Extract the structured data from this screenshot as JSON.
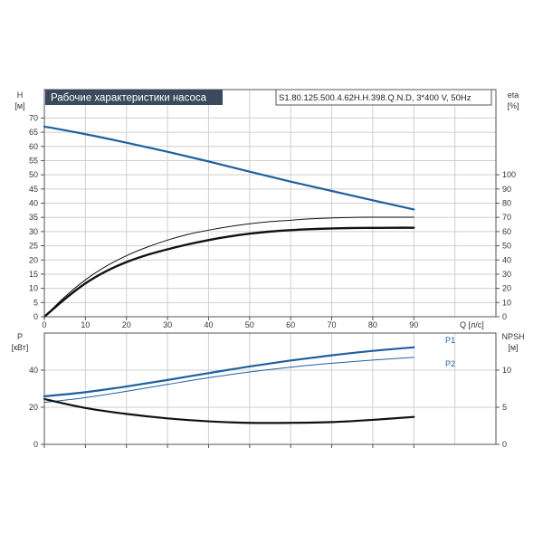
{
  "chart_data": [
    {
      "type": "line",
      "title": "Рабочие характеристики насоса",
      "model_label": "S1.80.125.500.4.62H.H.398.Q.N.D, 3*400 V, 50Hz",
      "xlabel": "Q [л/с]",
      "xlim": [
        0,
        110
      ],
      "x_ticks": [
        0,
        10,
        20,
        30,
        40,
        50,
        60,
        70,
        80,
        90
      ],
      "y_left": {
        "label_top": "H",
        "label_unit": "[м]",
        "lim": [
          0,
          80
        ],
        "ticks": [
          0,
          5,
          10,
          15,
          20,
          25,
          30,
          35,
          40,
          45,
          50,
          55,
          60,
          65,
          70
        ]
      },
      "y_right": {
        "label_top": "eta",
        "label_unit": "[%]",
        "lim": [
          0,
          160
        ],
        "ticks": [
          0,
          10,
          20,
          30,
          40,
          50,
          60,
          70,
          80,
          90,
          100
        ]
      },
      "grid": true,
      "series": [
        {
          "axis": "left",
          "color": "#1f5fa0",
          "width": 2.2,
          "x": [
            0,
            10,
            20,
            30,
            40,
            50,
            60,
            70,
            80,
            90
          ],
          "y": [
            67,
            64.3,
            61.3,
            58.1,
            54.7,
            51.1,
            47.6,
            44.3,
            41,
            37.8
          ]
        },
        {
          "axis": "right",
          "color": "#111111",
          "width": 1.0,
          "x": [
            0,
            5,
            10,
            15,
            20,
            25,
            30,
            35,
            40,
            45,
            50,
            55,
            60,
            65,
            70,
            75,
            80,
            85,
            90
          ],
          "y": [
            0,
            14,
            26,
            35.5,
            43,
            49,
            54,
            58,
            61,
            63.5,
            65.5,
            67,
            68,
            69,
            69.6,
            70,
            70.1,
            70.1,
            70.1
          ]
        },
        {
          "axis": "right",
          "color": "#111111",
          "width": 2.4,
          "x": [
            0,
            5,
            10,
            15,
            20,
            25,
            30,
            35,
            40,
            45,
            50,
            55,
            60,
            65,
            70,
            75,
            80,
            85,
            90
          ],
          "y": [
            0,
            12.5,
            23.5,
            32,
            38.5,
            43.5,
            47.5,
            51,
            54,
            56.5,
            58.5,
            60,
            61,
            61.7,
            62.2,
            62.5,
            62.6,
            62.7,
            62.7
          ]
        }
      ]
    },
    {
      "type": "line",
      "xlim": [
        0,
        110
      ],
      "x_ticks": [
        0,
        10,
        20,
        30,
        40,
        50,
        60,
        70,
        80,
        90
      ],
      "y_left": {
        "label_top": "P",
        "label_unit": "[кВт]",
        "lim": [
          0,
          60
        ],
        "ticks": [
          0,
          20,
          40
        ]
      },
      "y_right": {
        "label_top": "NPSH",
        "label_unit": "[м]",
        "lim": [
          0,
          15
        ],
        "ticks": [
          0,
          5,
          10
        ]
      },
      "grid": true,
      "series": [
        {
          "name": "P1",
          "axis": "left",
          "color": "#1f5fa0",
          "width": 2.2,
          "x": [
            0,
            10,
            20,
            30,
            40,
            50,
            60,
            70,
            80,
            90
          ],
          "y": [
            25.9,
            28.1,
            31.2,
            34.7,
            38.4,
            42,
            45.2,
            48,
            50.4,
            52.3
          ]
        },
        {
          "name": "P2",
          "axis": "left",
          "color": "#1f5fa0",
          "width": 1.0,
          "x": [
            0,
            10,
            20,
            30,
            40,
            50,
            60,
            70,
            80,
            90
          ],
          "y": [
            22.6,
            25.2,
            28.6,
            32.3,
            35.9,
            39,
            41.6,
            43.7,
            45.4,
            46.9
          ]
        },
        {
          "axis": "right",
          "color": "#111111",
          "width": 2.2,
          "x": [
            0,
            10,
            20,
            30,
            40,
            50,
            60,
            70,
            80,
            90
          ],
          "y": [
            6.1,
            4.9,
            4.1,
            3.5,
            3.1,
            2.9,
            2.9,
            3.0,
            3.3,
            3.7
          ]
        }
      ]
    }
  ]
}
